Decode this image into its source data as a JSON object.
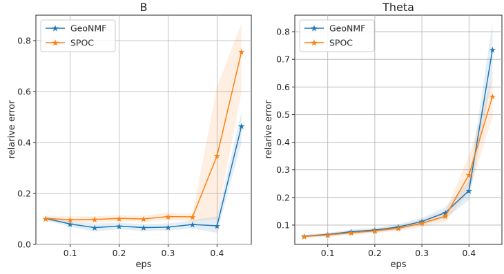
{
  "colors": {
    "geonmf": "#1f77b4",
    "spoc": "#ff7f0e",
    "grid": "#b0b0b0",
    "axes_bg": "#ffffff"
  },
  "chart_data": [
    {
      "type": "line",
      "title": "B",
      "xlabel": "eps",
      "ylabel": "relarive error",
      "x": [
        0.05,
        0.1,
        0.15,
        0.2,
        0.25,
        0.3,
        0.35,
        0.4,
        0.45
      ],
      "xlim": [
        0.03,
        0.47
      ],
      "ylim": [
        0.0,
        0.9
      ],
      "xticks": [
        0.1,
        0.2,
        0.3,
        0.4
      ],
      "xtick_labels": [
        "0.1",
        "0.2",
        "0.3",
        "0.4"
      ],
      "yticks": [
        0.0,
        0.2,
        0.4,
        0.6,
        0.8
      ],
      "ytick_labels": [
        "0.0",
        "0.2",
        "0.4",
        "0.6",
        "0.8"
      ],
      "grid": true,
      "legend_position": "top-left",
      "series": [
        {
          "name": "GeoNMF",
          "color": "#1f77b4",
          "marker": "star",
          "values": [
            0.102,
            0.08,
            0.066,
            0.072,
            0.066,
            0.068,
            0.078,
            0.073,
            0.465
          ],
          "band_low": [
            0.095,
            0.07,
            0.05,
            0.06,
            0.052,
            0.055,
            0.062,
            0.045,
            0.4
          ],
          "band_high": [
            0.11,
            0.09,
            0.082,
            0.085,
            0.08,
            0.082,
            0.095,
            0.11,
            0.52
          ]
        },
        {
          "name": "SPOC",
          "color": "#ff7f0e",
          "marker": "star",
          "values": [
            0.102,
            0.097,
            0.098,
            0.102,
            0.1,
            0.109,
            0.108,
            0.348,
            0.757
          ],
          "band_low": [
            0.09,
            0.085,
            0.085,
            0.09,
            0.088,
            0.095,
            0.09,
            0.1,
            0.6
          ],
          "band_high": [
            0.115,
            0.11,
            0.11,
            0.115,
            0.112,
            0.125,
            0.12,
            0.62,
            0.87
          ]
        }
      ]
    },
    {
      "type": "line",
      "title": "Theta",
      "xlabel": "eps",
      "ylabel": "relarive error",
      "x": [
        0.05,
        0.1,
        0.15,
        0.2,
        0.25,
        0.3,
        0.35,
        0.4,
        0.45
      ],
      "xlim": [
        0.03,
        0.47
      ],
      "ylim": [
        0.03,
        0.86
      ],
      "xticks": [
        0.1,
        0.2,
        0.3,
        0.4
      ],
      "xtick_labels": [
        "0.1",
        "0.2",
        "0.3",
        "0.4"
      ],
      "yticks": [
        0.1,
        0.2,
        0.3,
        0.4,
        0.5,
        0.6,
        0.7,
        0.8
      ],
      "ytick_labels": [
        "0.1",
        "0.2",
        "0.3",
        "0.4",
        "0.5",
        "0.6",
        "0.7",
        "0.8"
      ],
      "grid": true,
      "legend_position": "top-left",
      "series": [
        {
          "name": "GeoNMF",
          "color": "#1f77b4",
          "marker": "star",
          "values": [
            0.06,
            0.066,
            0.076,
            0.082,
            0.093,
            0.113,
            0.145,
            0.225,
            0.735
          ],
          "band_low": [
            0.055,
            0.06,
            0.068,
            0.074,
            0.083,
            0.1,
            0.125,
            0.19,
            0.64
          ],
          "band_high": [
            0.065,
            0.072,
            0.084,
            0.09,
            0.103,
            0.126,
            0.165,
            0.26,
            0.835
          ]
        },
        {
          "name": "SPOC",
          "color": "#ff7f0e",
          "marker": "star",
          "values": [
            0.059,
            0.064,
            0.072,
            0.079,
            0.088,
            0.107,
            0.132,
            0.282,
            0.566
          ],
          "band_low": [
            0.054,
            0.058,
            0.064,
            0.071,
            0.078,
            0.094,
            0.112,
            0.22,
            0.49
          ],
          "band_high": [
            0.064,
            0.07,
            0.08,
            0.087,
            0.098,
            0.12,
            0.152,
            0.35,
            0.64
          ]
        }
      ]
    }
  ]
}
